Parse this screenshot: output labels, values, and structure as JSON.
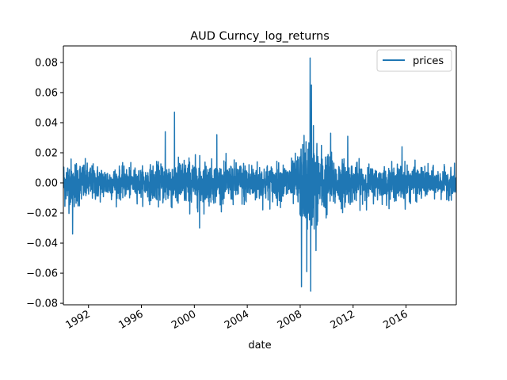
{
  "chart_data": {
    "type": "line",
    "title": "AUD Curncy_log_returns",
    "xlabel": "date",
    "ylabel": "",
    "legend": {
      "placement": "top-right",
      "entries": [
        "prices"
      ]
    },
    "grid": false,
    "xlim": [
      1990.1,
      2019.8
    ],
    "ylim": [
      -0.081,
      0.091
    ],
    "x_ticks": [
      1992,
      1996,
      2000,
      2004,
      2008,
      2012,
      2016
    ],
    "x_tick_labels": [
      "1992",
      "1996",
      "2000",
      "2004",
      "2008",
      "2012",
      "2016"
    ],
    "y_ticks": [
      -0.08,
      -0.06,
      -0.04,
      -0.02,
      0.0,
      0.02,
      0.04,
      0.06,
      0.08
    ],
    "y_tick_labels": [
      "−0.08",
      "−0.06",
      "−0.04",
      "−0.02",
      "0.00",
      "0.02",
      "0.04",
      "0.06",
      "0.08"
    ],
    "series": [
      {
        "name": "prices",
        "color": "#1f77b4",
        "x_start": 1990.1,
        "x_end": 2019.8,
        "volatility_profile": [
          {
            "year": 1990.1,
            "sigma": 0.0075
          },
          {
            "year": 1991.0,
            "sigma": 0.008
          },
          {
            "year": 1992.0,
            "sigma": 0.006
          },
          {
            "year": 1994.0,
            "sigma": 0.005
          },
          {
            "year": 1996.0,
            "sigma": 0.0048
          },
          {
            "year": 1997.5,
            "sigma": 0.0065
          },
          {
            "year": 1998.5,
            "sigma": 0.0082
          },
          {
            "year": 2000.5,
            "sigma": 0.0075
          },
          {
            "year": 2002.0,
            "sigma": 0.006
          },
          {
            "year": 2004.0,
            "sigma": 0.007
          },
          {
            "year": 2006.0,
            "sigma": 0.0058
          },
          {
            "year": 2007.5,
            "sigma": 0.0072
          },
          {
            "year": 2008.5,
            "sigma": 0.016
          },
          {
            "year": 2009.5,
            "sigma": 0.012
          },
          {
            "year": 2010.5,
            "sigma": 0.0085
          },
          {
            "year": 2012.0,
            "sigma": 0.0065
          },
          {
            "year": 2014.0,
            "sigma": 0.005
          },
          {
            "year": 2016.0,
            "sigma": 0.006
          },
          {
            "year": 2018.0,
            "sigma": 0.0045
          },
          {
            "year": 2019.8,
            "sigma": 0.0045
          }
        ],
        "notable_points": [
          {
            "x": 1990.8,
            "y": -0.034
          },
          {
            "x": 1997.8,
            "y": 0.034
          },
          {
            "x": 1998.5,
            "y": 0.047
          },
          {
            "x": 2000.4,
            "y": -0.03
          },
          {
            "x": 2001.7,
            "y": 0.032
          },
          {
            "x": 2008.1,
            "y": -0.069
          },
          {
            "x": 2008.5,
            "y": -0.059
          },
          {
            "x": 2008.75,
            "y": 0.083
          },
          {
            "x": 2008.8,
            "y": -0.072
          },
          {
            "x": 2008.85,
            "y": 0.065
          },
          {
            "x": 2009.0,
            "y": 0.038
          },
          {
            "x": 2009.2,
            "y": -0.045
          },
          {
            "x": 2010.3,
            "y": 0.033
          },
          {
            "x": 2011.6,
            "y": 0.031
          },
          {
            "x": 2015.7,
            "y": 0.024
          }
        ]
      }
    ]
  }
}
